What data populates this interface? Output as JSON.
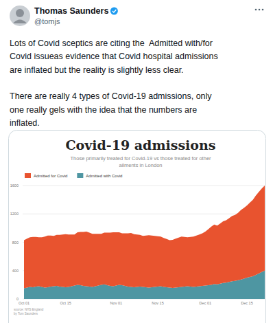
{
  "tweet": {
    "author": "Thomas Saunders",
    "handle": "@tomjs",
    "paragraphs": [
      [
        "Lots of Covid sceptics are citing the  Admitted with/for",
        "Covid issueas evidence that Covid hospital admissions",
        "are inflated but the reality is slightly less clear."
      ],
      [
        "There are really 4 types of Covid-19 admissions, only",
        "one really gels with the idea that the numbers are",
        "inflated."
      ]
    ]
  },
  "chart_data": {
    "type": "area",
    "stacked": true,
    "grid": true,
    "legend": "top-left",
    "title": "Covid-19 admissions",
    "subtitle": [
      "Those primarily treated for Covid-19 vs those treated for other",
      "ailments in London"
    ],
    "source": [
      "source: NHS England",
      "by Tom Saunders"
    ],
    "categories": [
      "Oct 01",
      null,
      null,
      null,
      null,
      null,
      null,
      null,
      null,
      null,
      null,
      null,
      null,
      null,
      "Oct 15",
      null,
      null,
      null,
      null,
      null,
      null,
      null,
      null,
      null,
      null,
      null,
      null,
      null,
      null,
      null,
      null,
      "Nov 01",
      null,
      null,
      null,
      null,
      null,
      null,
      null,
      null,
      null,
      null,
      null,
      null,
      null,
      "Nov 15",
      null,
      null,
      null,
      null,
      null,
      null,
      null,
      null,
      null,
      null,
      null,
      null,
      null,
      null,
      null,
      "Dec 01",
      null,
      null,
      null,
      null,
      null,
      null,
      null,
      null,
      null,
      null,
      null,
      null,
      null,
      "Dec 15",
      null,
      null,
      null,
      null,
      null,
      null
    ],
    "series": [
      {
        "name": "Admitted for Covid",
        "color": "#e8532f",
        "values": [
          680,
          690,
          700,
          710,
          700,
          690,
          700,
          720,
          730,
          720,
          710,
          720,
          730,
          740,
          750,
          740,
          730,
          720,
          740,
          750,
          760,
          770,
          760,
          750,
          740,
          730,
          720,
          730,
          740,
          750,
          760,
          750,
          740,
          730,
          740,
          750,
          760,
          750,
          740,
          730,
          720,
          730,
          740,
          730,
          720,
          710,
          700,
          690,
          680,
          670,
          680,
          690,
          700,
          710,
          700,
          690,
          700,
          710,
          720,
          730,
          740,
          760,
          790,
          820,
          840,
          830,
          850,
          870,
          880,
          900,
          920,
          930,
          950,
          980,
          1000,
          1020,
          1050,
          1080,
          1120,
          1150,
          1180,
          1200
        ]
      },
      {
        "name": "Admitted with Covid",
        "color": "#4e96a2",
        "values": [
          150,
          160,
          170,
          165,
          175,
          180,
          170,
          160,
          165,
          175,
          180,
          185,
          175,
          170,
          165,
          170,
          180,
          190,
          200,
          195,
          185,
          180,
          175,
          170,
          180,
          190,
          200,
          205,
          195,
          185,
          180,
          190,
          200,
          195,
          185,
          175,
          170,
          165,
          170,
          175,
          170,
          165,
          160,
          165,
          170,
          175,
          180,
          170,
          165,
          160,
          155,
          160,
          165,
          170,
          175,
          180,
          175,
          170,
          175,
          180,
          185,
          190,
          195,
          200,
          210,
          205,
          215,
          225,
          230,
          240,
          250,
          255,
          265,
          275,
          285,
          300,
          310,
          320,
          340,
          360,
          380,
          400
        ]
      }
    ],
    "ylim": [
      0,
      1600
    ],
    "yticks": [
      0,
      400,
      800,
      1200,
      1600
    ]
  }
}
